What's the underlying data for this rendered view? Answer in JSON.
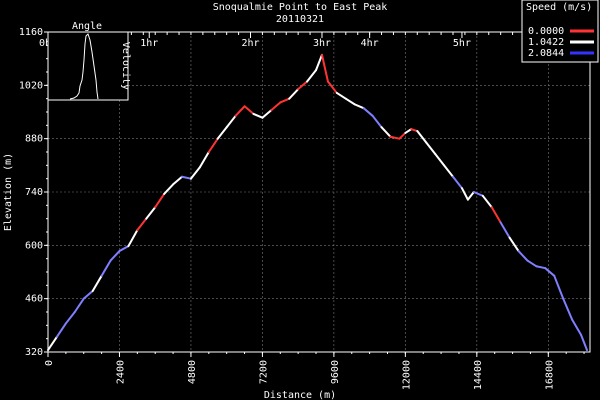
{
  "chart_data": {
    "type": "line",
    "title": "Snoqualmie Point to East Peak",
    "subtitle": "20110321",
    "xlabel": "Distance (m)",
    "ylabel": "Elevation (m)",
    "xlim": [
      0,
      18200
    ],
    "ylim": [
      320,
      1160
    ],
    "x_ticks": [
      "0",
      "2400",
      "4800",
      "7200",
      "9600",
      "12000",
      "14400",
      "16800"
    ],
    "x_tick_values": [
      0,
      2400,
      4800,
      7200,
      9600,
      12000,
      14400,
      16800
    ],
    "y_ticks": [
      "320",
      "460",
      "600",
      "740",
      "880",
      "1020",
      "1160"
    ],
    "y_tick_values": [
      320,
      460,
      600,
      740,
      880,
      1020,
      1160
    ],
    "time_ticks": [
      "0hr",
      "1hr",
      "2hr",
      "3hr",
      "4hr",
      "5hr"
    ],
    "time_tick_distances": [
      0,
      3400,
      6800,
      9200,
      10800,
      13900
    ],
    "grid": true,
    "legend": {
      "title": "Speed (m/s)",
      "placement": "top-right",
      "entries": [
        {
          "label": "0.0000",
          "color": "#ff3333"
        },
        {
          "label": "1.0422",
          "color": "#ffffff"
        },
        {
          "label": "2.0844",
          "color": "#3333ff"
        }
      ]
    },
    "inset": {
      "title": "Angle",
      "side_label": "Velocity"
    },
    "series": [
      {
        "x": [
          0,
          300,
          600,
          900,
          1200,
          1500,
          1800,
          2100,
          2400,
          2700,
          3000,
          3300,
          3600,
          3900,
          4200,
          4500,
          4800,
          5100,
          5400,
          5700,
          6000,
          6300,
          6600,
          6900,
          7200,
          7500,
          7800,
          8100,
          8400,
          8700,
          9000,
          9200,
          9400,
          9700,
          10000,
          10300,
          10600,
          10900,
          11200,
          11500,
          11800,
          12000,
          12200,
          12400,
          12700,
          13000,
          13300,
          13600,
          13900,
          14100,
          14300,
          14600,
          14900,
          15200,
          15500,
          15800,
          16100,
          16400,
          16700,
          17000,
          17300,
          17600,
          17900,
          18100
        ],
        "y": [
          325,
          360,
          395,
          425,
          460,
          480,
          520,
          560,
          585,
          598,
          640,
          670,
          700,
          735,
          760,
          780,
          775,
          805,
          845,
          880,
          910,
          940,
          965,
          945,
          935,
          955,
          975,
          985,
          1010,
          1030,
          1060,
          1100,
          1030,
          1000,
          985,
          970,
          960,
          940,
          910,
          885,
          880,
          895,
          905,
          900,
          870,
          840,
          810,
          780,
          750,
          720,
          740,
          730,
          700,
          660,
          620,
          585,
          560,
          545,
          540,
          520,
          460,
          405,
          365,
          325
        ],
        "speed": [
          1.0,
          1.8,
          2.0,
          1.8,
          1.9,
          1.0,
          1.8,
          1.9,
          1.7,
          1.0,
          0.3,
          1.0,
          0.3,
          1.0,
          1.0,
          1.8,
          1.0,
          1.0,
          0.3,
          1.0,
          1.0,
          0.6,
          0.3,
          1.0,
          1.0,
          0.3,
          0.3,
          1.0,
          0.3,
          1.0,
          1.0,
          0.3,
          0.3,
          1.0,
          1.0,
          1.0,
          1.6,
          1.8,
          1.0,
          0.3,
          0.3,
          1.0,
          0.3,
          1.0,
          1.0,
          1.0,
          1.0,
          1.6,
          1.0,
          1.0,
          1.6,
          1.0,
          0.3,
          1.8,
          1.0,
          1.8,
          2.0,
          2.0,
          1.9,
          2.0,
          2.0,
          1.9,
          1.8,
          1.0
        ]
      }
    ]
  }
}
